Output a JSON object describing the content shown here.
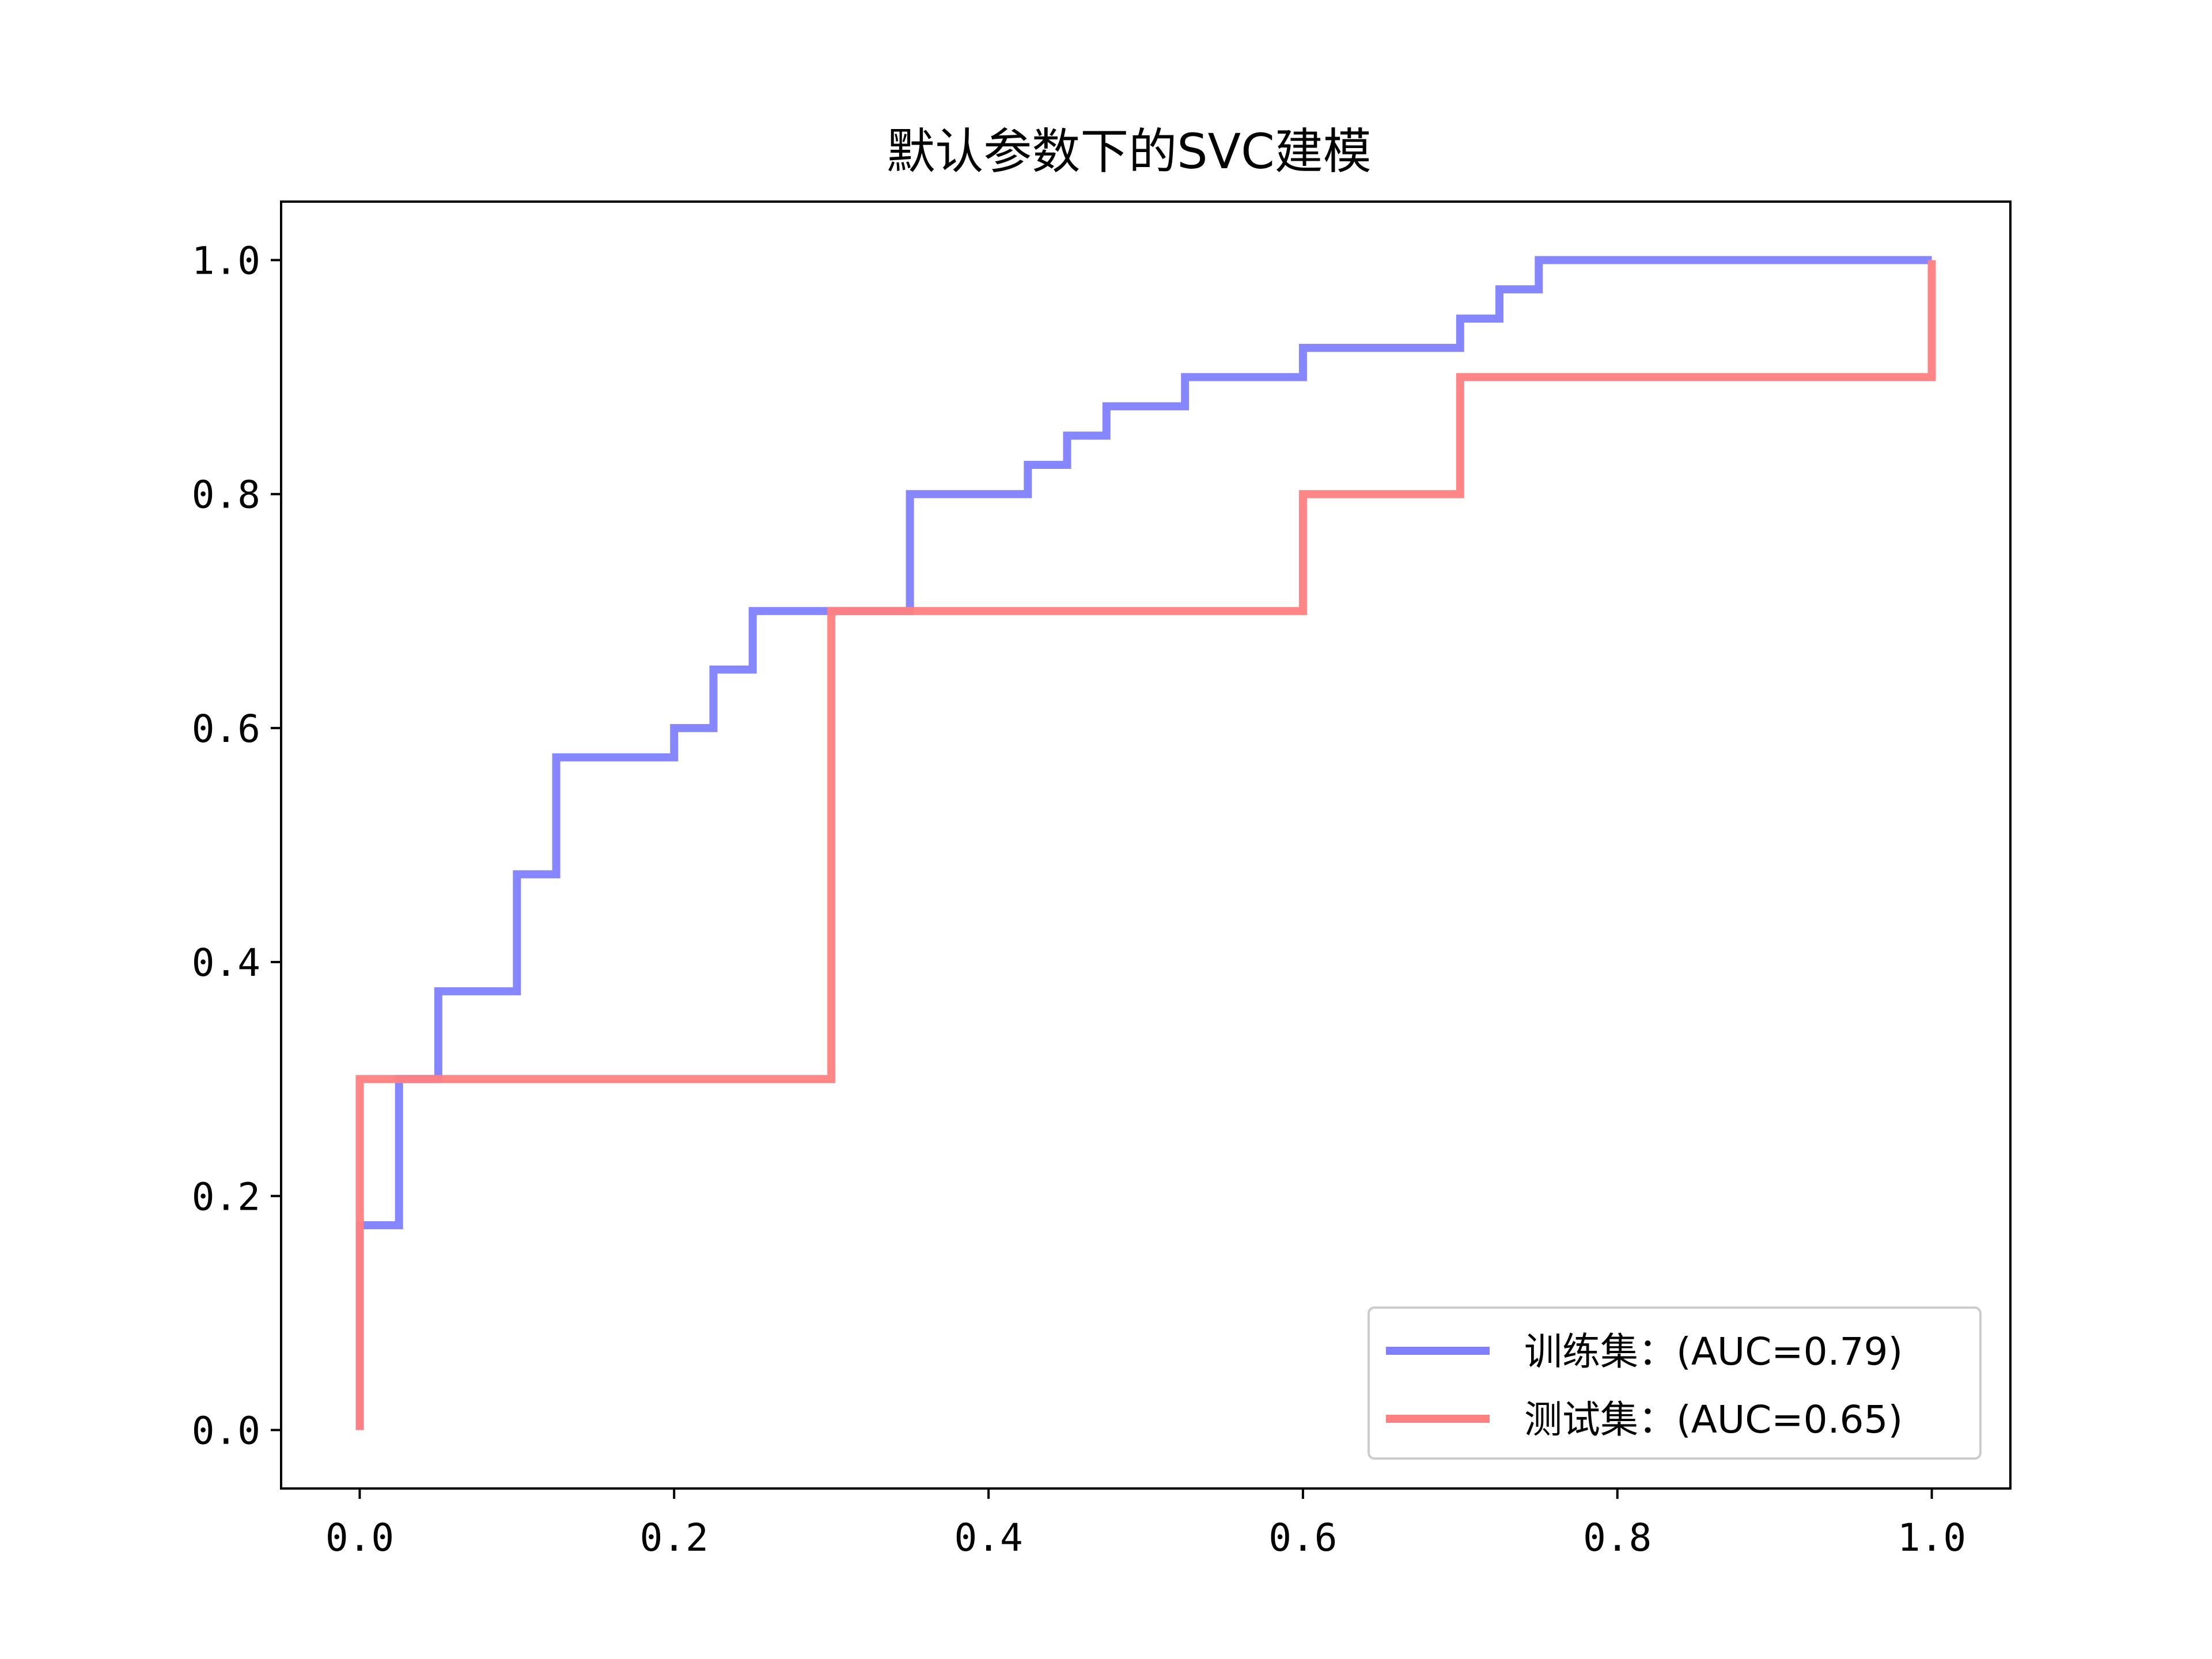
{
  "chart_data": {
    "type": "line",
    "title": "默认参数下的SVC建模",
    "xlabel": "",
    "ylabel": "",
    "xlim": [
      -0.05,
      1.05
    ],
    "ylim": [
      -0.05,
      1.05
    ],
    "x_ticks": [
      "0.0",
      "0.2",
      "0.4",
      "0.6",
      "0.8",
      "1.0"
    ],
    "y_ticks": [
      "0.0",
      "0.2",
      "0.4",
      "0.6",
      "0.8",
      "1.0"
    ],
    "legend_position": "lower-right",
    "grid": false,
    "series": [
      {
        "name": "训练集：(AUC=0.79)",
        "color": "#8080ff",
        "x": [
          0.0,
          0.0,
          0.025,
          0.025,
          0.05,
          0.05,
          0.1,
          0.1,
          0.125,
          0.125,
          0.2,
          0.2,
          0.225,
          0.225,
          0.25,
          0.25,
          0.35,
          0.35,
          0.425,
          0.425,
          0.45,
          0.45,
          0.475,
          0.475,
          0.525,
          0.525,
          0.6,
          0.6,
          0.7,
          0.7,
          0.725,
          0.725,
          0.75,
          0.75,
          1.0
        ],
        "y": [
          0.0,
          0.175,
          0.175,
          0.3,
          0.3,
          0.375,
          0.375,
          0.475,
          0.475,
          0.575,
          0.575,
          0.6,
          0.6,
          0.65,
          0.65,
          0.7,
          0.7,
          0.8,
          0.8,
          0.825,
          0.825,
          0.85,
          0.85,
          0.875,
          0.875,
          0.9,
          0.9,
          0.925,
          0.925,
          0.95,
          0.95,
          0.975,
          0.975,
          1.0,
          1.0
        ]
      },
      {
        "name": "测试集：(AUC=0.65)",
        "color": "#ff8080",
        "x": [
          0.0,
          0.0,
          0.3,
          0.3,
          0.6,
          0.6,
          0.7,
          0.7,
          1.0,
          1.0
        ],
        "y": [
          0.0,
          0.3,
          0.3,
          0.7,
          0.7,
          0.8,
          0.8,
          0.9,
          0.9,
          1.0
        ]
      }
    ]
  }
}
